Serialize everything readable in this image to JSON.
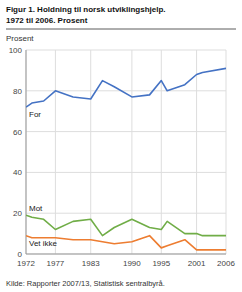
{
  "chart_data": {
    "type": "line",
    "title": "Figur 1. Holdning til norsk utviklingshjelp.",
    "subtitle": "1972 til 2006. Prosent",
    "ylabel": "Prosent",
    "source": "Kilde: Rapporter 2007/13, Statistisk sentralbyrå.",
    "x": [
      1972,
      1973,
      1975,
      1977,
      1980,
      1983,
      1985,
      1987,
      1990,
      1993,
      1995,
      1996,
      1999,
      2001,
      2002,
      2006
    ],
    "series": [
      {
        "name": "For",
        "color": "#4472c4",
        "values": [
          72,
          74,
          75,
          80,
          77,
          76,
          85,
          82,
          77,
          78,
          85,
          80,
          83,
          88,
          89,
          91
        ]
      },
      {
        "name": "Mot",
        "color": "#70ad47",
        "values": [
          19,
          18,
          17,
          12,
          16,
          17,
          9,
          13,
          17,
          13,
          12,
          16,
          10,
          10,
          9,
          9
        ]
      },
      {
        "name": "Vet ikke",
        "color": "#ed7d31",
        "values": [
          9,
          8,
          8,
          8,
          7,
          7,
          6,
          5,
          6,
          9,
          3,
          4,
          7,
          2,
          2,
          2
        ]
      }
    ],
    "xlim": [
      1972,
      2006
    ],
    "xticks": [
      1972,
      1977,
      1983,
      1990,
      1995,
      2001,
      2006
    ],
    "ylim": [
      0,
      100
    ],
    "yticks": [
      0,
      20,
      40,
      60,
      80,
      100
    ],
    "grid": true
  }
}
